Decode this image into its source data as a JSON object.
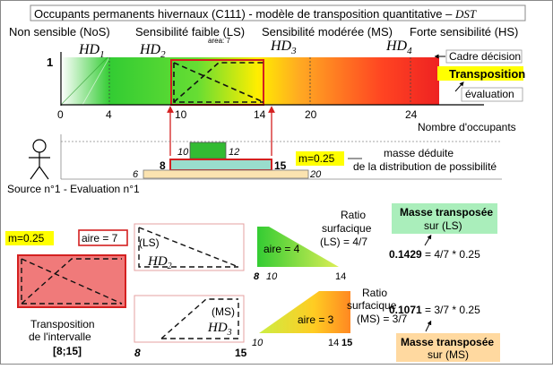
{
  "header": {
    "title": "Occupants permanents hivernaux (C111) - modèle de transposition quantitative – ",
    "title_method": "DST"
  },
  "categories": [
    {
      "label": "Non sensible (NoS)",
      "symbol": "HD",
      "index": "1"
    },
    {
      "label": "Sensibilité faible (LS)",
      "symbol": "HD",
      "index": "2"
    },
    {
      "label": "Sensibilité modérée (MS)",
      "symbol": "HD",
      "index": "3"
    },
    {
      "label": "Forte sensibilité (HS)",
      "symbol": "HD",
      "index": "4"
    }
  ],
  "axis": {
    "y_max": "1",
    "ticks": [
      "0",
      "4",
      "10",
      "14",
      "20",
      "24"
    ],
    "xlabel": "Nombre d'occupants"
  },
  "annotations": {
    "area_label": "area: 7",
    "cadre": "Cadre décision",
    "transposition": "Transposition",
    "evaluation": "évaluation"
  },
  "colors": {
    "green": "#33cc33",
    "yellow": "#ffee00",
    "orange": "#ff9922",
    "red": "#ee2222",
    "pink": "#f07a7a",
    "teal": "#99ddcc",
    "beige": "#fbe3b0",
    "highlight": "#ffff00",
    "mint": "#aaeebb",
    "peach": "#ffd9a0"
  },
  "source": {
    "caption": "Source n°1 - Evaluation n°1",
    "mass": "m=0.25",
    "deduced_line1": "masse déduite",
    "deduced_line2": "de la distribution de possibilité",
    "bar_top": {
      "left": "10",
      "right": "12"
    },
    "bar_mid": {
      "left": "8",
      "right": "15"
    },
    "bar_bottom": {
      "left": "6",
      "right": "20"
    }
  },
  "bottom": {
    "mass": "m=0.25",
    "aire": "aire = 7",
    "transposition_line1": "Transposition",
    "transposition_line2": "de l'intervalle",
    "interval": "[8;15]",
    "ls_box_label": "(LS)",
    "ms_box_label": "(MS)",
    "box_left": "8",
    "box_right": "15",
    "ls_aire": "aire = 4",
    "ls_ticks": [
      "8",
      "10",
      "14"
    ],
    "ms_aire": "aire = 3",
    "ms_ticks": [
      "10",
      "14",
      "15"
    ],
    "ratio_ls": [
      "Ratio",
      "surfacique",
      "(LS) = 4/7"
    ],
    "ratio_ms": [
      "Ratio",
      "surfacique",
      "(MS) = 3/7"
    ],
    "mass_ls_title": [
      "Masse transposée",
      "sur (LS)"
    ],
    "mass_ls_value": "0.1429",
    "mass_ls_formula": " = 4/7 * 0.25",
    "mass_ms_value": "0.1071",
    "mass_ms_formula": " = 3/7 * 0.25",
    "mass_ms_title": [
      "Masse transposée",
      "sur (MS)"
    ]
  }
}
